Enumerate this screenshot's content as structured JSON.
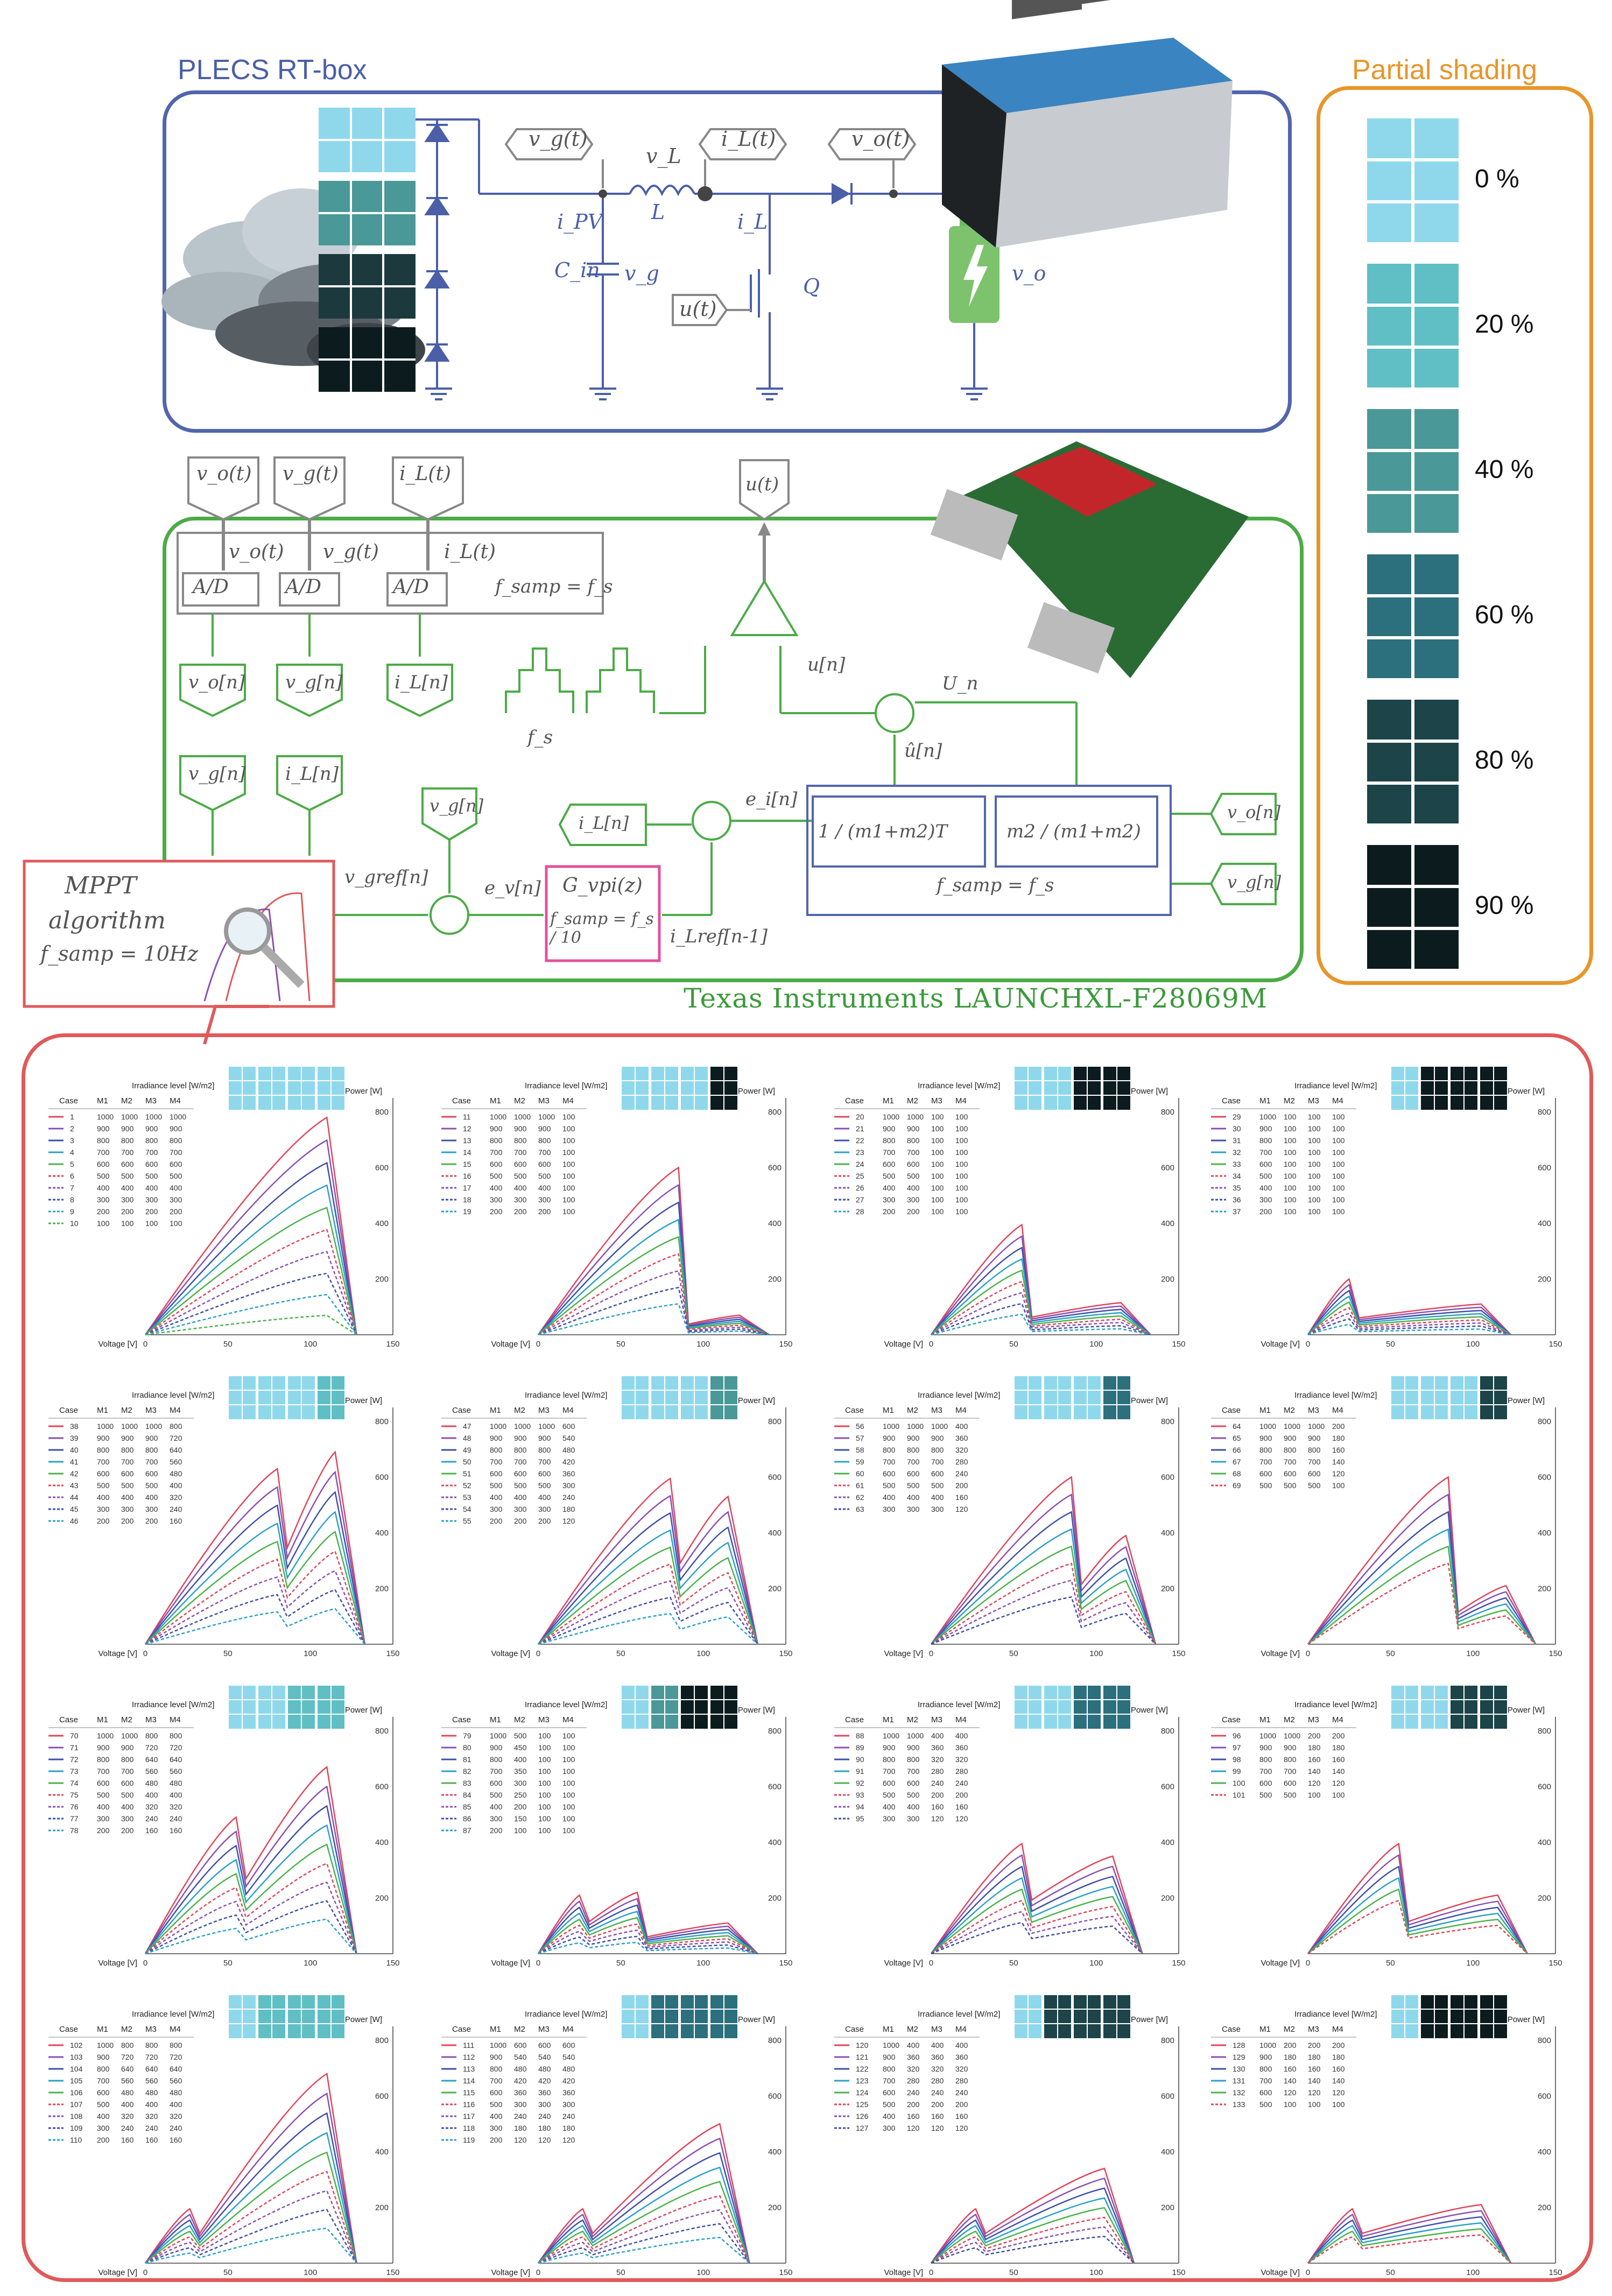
{
  "rtbox": {
    "title": "PLECS RT-box",
    "labels": {
      "vg_box": "v_g(t)",
      "vL": "v_L",
      "iL_box": "i_L(t)",
      "vo_box": "v_o(t)",
      "iPV": "i_PV",
      "L": "L",
      "iL": "i_L",
      "Cin": "C_in",
      "vg": "v_g",
      "u_box": "u(t)",
      "Q": "Q",
      "vo": "v_o"
    }
  },
  "shading": {
    "title": "Partial shading",
    "levels": [
      {
        "label": "0 %",
        "color": "#8fd8ec"
      },
      {
        "label": "20 %",
        "color": "#5fbfc4"
      },
      {
        "label": "40 %",
        "color": "#4b9898"
      },
      {
        "label": "60 %",
        "color": "#2c6f7d"
      },
      {
        "label": "80 %",
        "color": "#1c4449"
      },
      {
        "label": "90 %",
        "color": "#0c1c1e"
      }
    ]
  },
  "controller": {
    "title": "Texas Instruments LAUNCHXL-F28069M",
    "inputs": [
      "v_o(t)",
      "v_g(t)",
      "i_L(t)"
    ],
    "ad_label": "A/D",
    "fsamp": "f_samp = f_s",
    "discrete": [
      "v_o[n]",
      "v_g[n]",
      "i_L[n]"
    ],
    "mppt": {
      "title": "MPPT",
      "sub": "algorithm",
      "fsamp": "f_samp = 10Hz"
    },
    "vgref": "v_gref[n]",
    "ev": "e_v[n]",
    "gvpi": "G_vpi(z)",
    "gvpi_fs": "f_samp = f_s / 10",
    "ilref": "i_Lref[n-1]",
    "ei": "e_i[n]",
    "ff1": "1 / (m1+m2)T",
    "ff2": "m2 / (m1+m2)",
    "un": "U_n",
    "uhat": "û[n]",
    "un_out": "u[n]",
    "fs": "f_s",
    "u_out": "u(t)"
  },
  "table_header": {
    "irr": "Irradiance level [W/m2]",
    "cols": [
      "Case",
      "M1",
      "M2",
      "M3",
      "M4"
    ]
  },
  "axis": {
    "power": "Power [W]",
    "voltage": "Voltage [V]",
    "yticks": [
      200,
      400,
      600,
      800
    ],
    "xticks": [
      0,
      50,
      100,
      150
    ]
  },
  "panels": [
    {
      "shade": [
        0,
        0,
        0,
        0
      ],
      "rows": [
        [
          1,
          1000,
          1000,
          1000,
          1000
        ],
        [
          2,
          900,
          900,
          900,
          900
        ],
        [
          3,
          800,
          800,
          800,
          800
        ],
        [
          4,
          700,
          700,
          700,
          700
        ],
        [
          5,
          600,
          600,
          600,
          600
        ],
        [
          6,
          500,
          500,
          500,
          500
        ],
        [
          7,
          400,
          400,
          400,
          400
        ],
        [
          8,
          300,
          300,
          300,
          300
        ],
        [
          9,
          200,
          200,
          200,
          200
        ],
        [
          10,
          100,
          100,
          100,
          100
        ]
      ],
      "peaks": [
        [
          110,
          780
        ]
      ]
    },
    {
      "shade": [
        0,
        0,
        0,
        5
      ],
      "rows": [
        [
          11,
          1000,
          1000,
          1000,
          100
        ],
        [
          12,
          900,
          900,
          900,
          100
        ],
        [
          13,
          800,
          800,
          800,
          100
        ],
        [
          14,
          700,
          700,
          700,
          100
        ],
        [
          15,
          600,
          600,
          600,
          100
        ],
        [
          16,
          500,
          500,
          500,
          100
        ],
        [
          17,
          400,
          400,
          400,
          100
        ],
        [
          18,
          300,
          300,
          300,
          100
        ],
        [
          19,
          200,
          200,
          200,
          100
        ]
      ],
      "peaks": [
        [
          85,
          600
        ],
        [
          122,
          70
        ]
      ]
    },
    {
      "shade": [
        0,
        0,
        5,
        5
      ],
      "rows": [
        [
          20,
          1000,
          1000,
          100,
          100
        ],
        [
          21,
          900,
          900,
          100,
          100
        ],
        [
          22,
          800,
          800,
          100,
          100
        ],
        [
          23,
          700,
          700,
          100,
          100
        ],
        [
          24,
          600,
          600,
          100,
          100
        ],
        [
          25,
          500,
          500,
          100,
          100
        ],
        [
          26,
          400,
          400,
          100,
          100
        ],
        [
          27,
          300,
          300,
          100,
          100
        ],
        [
          28,
          200,
          200,
          100,
          100
        ]
      ],
      "peaks": [
        [
          55,
          395
        ],
        [
          115,
          115
        ]
      ]
    },
    {
      "shade": [
        0,
        5,
        5,
        5
      ],
      "rows": [
        [
          29,
          1000,
          100,
          100,
          100
        ],
        [
          30,
          900,
          100,
          100,
          100
        ],
        [
          31,
          800,
          100,
          100,
          100
        ],
        [
          32,
          700,
          100,
          100,
          100
        ],
        [
          33,
          600,
          100,
          100,
          100
        ],
        [
          34,
          500,
          100,
          100,
          100
        ],
        [
          35,
          400,
          100,
          100,
          100
        ],
        [
          36,
          300,
          100,
          100,
          100
        ],
        [
          37,
          200,
          100,
          100,
          100
        ]
      ],
      "peaks": [
        [
          25,
          200
        ],
        [
          105,
          110
        ]
      ]
    },
    {
      "shade": [
        0,
        0,
        0,
        1
      ],
      "rows": [
        [
          38,
          1000,
          1000,
          1000,
          800
        ],
        [
          39,
          900,
          900,
          900,
          720
        ],
        [
          40,
          800,
          800,
          800,
          640
        ],
        [
          41,
          700,
          700,
          700,
          560
        ],
        [
          42,
          600,
          600,
          600,
          480
        ],
        [
          43,
          500,
          500,
          500,
          400
        ],
        [
          44,
          400,
          400,
          400,
          320
        ],
        [
          45,
          300,
          300,
          300,
          240
        ],
        [
          46,
          200,
          200,
          200,
          160
        ]
      ],
      "peaks": [
        [
          80,
          630
        ],
        [
          115,
          690
        ]
      ]
    },
    {
      "shade": [
        0,
        0,
        0,
        2
      ],
      "rows": [
        [
          47,
          1000,
          1000,
          1000,
          600
        ],
        [
          48,
          900,
          900,
          900,
          540
        ],
        [
          49,
          800,
          800,
          800,
          480
        ],
        [
          50,
          700,
          700,
          700,
          420
        ],
        [
          51,
          600,
          600,
          600,
          360
        ],
        [
          52,
          500,
          500,
          500,
          300
        ],
        [
          53,
          400,
          400,
          400,
          240
        ],
        [
          54,
          300,
          300,
          300,
          180
        ],
        [
          55,
          200,
          200,
          200,
          120
        ]
      ],
      "peaks": [
        [
          80,
          595
        ],
        [
          115,
          530
        ]
      ]
    },
    {
      "shade": [
        0,
        0,
        0,
        3
      ],
      "rows": [
        [
          56,
          1000,
          1000,
          1000,
          400
        ],
        [
          57,
          900,
          900,
          900,
          360
        ],
        [
          58,
          800,
          800,
          800,
          320
        ],
        [
          59,
          700,
          700,
          700,
          280
        ],
        [
          60,
          600,
          600,
          600,
          240
        ],
        [
          61,
          500,
          500,
          500,
          200
        ],
        [
          62,
          400,
          400,
          400,
          160
        ],
        [
          63,
          300,
          300,
          300,
          120
        ]
      ],
      "peaks": [
        [
          85,
          600
        ],
        [
          118,
          390
        ]
      ]
    },
    {
      "shade": [
        0,
        0,
        0,
        4
      ],
      "rows": [
        [
          64,
          1000,
          1000,
          1000,
          200
        ],
        [
          65,
          900,
          900,
          900,
          180
        ],
        [
          66,
          800,
          800,
          800,
          160
        ],
        [
          67,
          700,
          700,
          700,
          140
        ],
        [
          68,
          600,
          600,
          600,
          120
        ],
        [
          69,
          500,
          500,
          500,
          100
        ]
      ],
      "peaks": [
        [
          85,
          600
        ],
        [
          120,
          210
        ]
      ]
    },
    {
      "shade": [
        0,
        0,
        1,
        1
      ],
      "rows": [
        [
          70,
          1000,
          1000,
          800,
          800
        ],
        [
          71,
          900,
          900,
          720,
          720
        ],
        [
          72,
          800,
          800,
          640,
          640
        ],
        [
          73,
          700,
          700,
          560,
          560
        ],
        [
          74,
          600,
          600,
          480,
          480
        ],
        [
          75,
          500,
          500,
          400,
          400
        ],
        [
          76,
          400,
          400,
          320,
          320
        ],
        [
          77,
          300,
          300,
          240,
          240
        ],
        [
          78,
          200,
          200,
          160,
          160
        ]
      ],
      "peaks": [
        [
          55,
          490
        ],
        [
          110,
          670
        ]
      ]
    },
    {
      "shade": [
        0,
        2,
        5,
        5
      ],
      "rows": [
        [
          79,
          1000,
          500,
          100,
          100
        ],
        [
          80,
          900,
          450,
          100,
          100
        ],
        [
          81,
          800,
          400,
          100,
          100
        ],
        [
          82,
          700,
          350,
          100,
          100
        ],
        [
          83,
          600,
          300,
          100,
          100
        ],
        [
          84,
          500,
          250,
          100,
          100
        ],
        [
          85,
          400,
          200,
          100,
          100
        ],
        [
          86,
          300,
          150,
          100,
          100
        ],
        [
          87,
          200,
          100,
          100,
          100
        ]
      ],
      "peaks": [
        [
          25,
          210
        ],
        [
          60,
          220
        ],
        [
          115,
          110
        ]
      ]
    },
    {
      "shade": [
        0,
        0,
        3,
        3
      ],
      "rows": [
        [
          88,
          1000,
          1000,
          400,
          400
        ],
        [
          89,
          900,
          900,
          360,
          360
        ],
        [
          90,
          800,
          800,
          320,
          320
        ],
        [
          91,
          700,
          700,
          280,
          280
        ],
        [
          92,
          600,
          600,
          240,
          240
        ],
        [
          93,
          500,
          500,
          200,
          200
        ],
        [
          94,
          400,
          400,
          160,
          160
        ],
        [
          95,
          300,
          300,
          120,
          120
        ]
      ],
      "peaks": [
        [
          55,
          395
        ],
        [
          110,
          350
        ]
      ]
    },
    {
      "shade": [
        0,
        0,
        4,
        4
      ],
      "rows": [
        [
          96,
          1000,
          1000,
          200,
          200
        ],
        [
          97,
          900,
          900,
          180,
          180
        ],
        [
          98,
          800,
          800,
          160,
          160
        ],
        [
          99,
          700,
          700,
          140,
          140
        ],
        [
          100,
          600,
          600,
          120,
          120
        ],
        [
          101,
          500,
          500,
          100,
          100
        ]
      ],
      "peaks": [
        [
          55,
          395
        ],
        [
          115,
          210
        ]
      ]
    },
    {
      "shade": [
        0,
        1,
        1,
        1
      ],
      "rows": [
        [
          102,
          1000,
          800,
          800,
          800
        ],
        [
          103,
          900,
          720,
          720,
          720
        ],
        [
          104,
          800,
          640,
          640,
          640
        ],
        [
          105,
          700,
          560,
          560,
          560
        ],
        [
          106,
          600,
          480,
          480,
          480
        ],
        [
          107,
          500,
          400,
          400,
          400
        ],
        [
          108,
          400,
          320,
          320,
          320
        ],
        [
          109,
          300,
          240,
          240,
          240
        ],
        [
          110,
          200,
          160,
          160,
          160
        ]
      ],
      "peaks": [
        [
          27,
          195
        ],
        [
          110,
          680
        ]
      ]
    },
    {
      "shade": [
        0,
        3,
        3,
        3
      ],
      "rows": [
        [
          111,
          1000,
          600,
          600,
          600
        ],
        [
          112,
          900,
          540,
          540,
          540
        ],
        [
          113,
          800,
          480,
          480,
          480
        ],
        [
          114,
          700,
          420,
          420,
          420
        ],
        [
          115,
          600,
          360,
          360,
          360
        ],
        [
          116,
          500,
          300,
          300,
          300
        ],
        [
          117,
          400,
          240,
          240,
          240
        ],
        [
          118,
          300,
          180,
          180,
          180
        ],
        [
          119,
          200,
          120,
          120,
          120
        ]
      ],
      "peaks": [
        [
          27,
          195
        ],
        [
          110,
          500
        ]
      ]
    },
    {
      "shade": [
        0,
        4,
        4,
        4
      ],
      "rows": [
        [
          120,
          1000,
          400,
          400,
          400
        ],
        [
          121,
          900,
          360,
          360,
          360
        ],
        [
          122,
          800,
          320,
          320,
          320
        ],
        [
          123,
          700,
          280,
          280,
          280
        ],
        [
          124,
          600,
          240,
          240,
          240
        ],
        [
          125,
          500,
          200,
          200,
          200
        ],
        [
          126,
          400,
          160,
          160,
          160
        ],
        [
          127,
          300,
          120,
          120,
          120
        ]
      ],
      "peaks": [
        [
          27,
          195
        ],
        [
          105,
          340
        ]
      ]
    },
    {
      "shade": [
        0,
        5,
        5,
        5
      ],
      "rows": [
        [
          128,
          1000,
          200,
          200,
          200
        ],
        [
          129,
          900,
          180,
          180,
          180
        ],
        [
          130,
          800,
          160,
          160,
          160
        ],
        [
          131,
          700,
          140,
          140,
          140
        ],
        [
          132,
          600,
          120,
          120,
          120
        ],
        [
          133,
          500,
          100,
          100,
          100
        ]
      ],
      "peaks": [
        [
          27,
          195
        ],
        [
          105,
          210
        ]
      ]
    }
  ]
}
